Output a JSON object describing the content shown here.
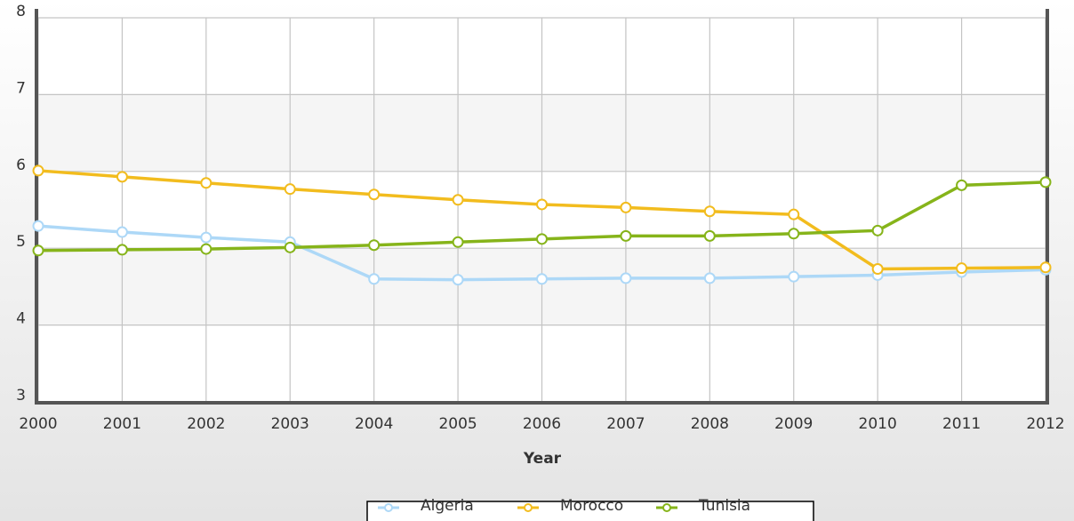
{
  "chart_data": {
    "type": "line",
    "x_label": "Year",
    "x": [
      2000,
      2001,
      2002,
      2003,
      2004,
      2005,
      2006,
      2007,
      2008,
      2009,
      2010,
      2011,
      2012
    ],
    "xlim": [
      2000,
      2012
    ],
    "xticks": [
      2000,
      2001,
      2002,
      2003,
      2004,
      2005,
      2006,
      2007,
      2008,
      2009,
      2010,
      2011,
      2012
    ],
    "ylim": [
      3,
      8
    ],
    "yticks": [
      3,
      4,
      5,
      6,
      7,
      8
    ],
    "grid": true,
    "legend": "bottom",
    "series": [
      {
        "name": "Algeria",
        "color": "#add8f7",
        "values": [
          5.29,
          5.21,
          5.14,
          5.08,
          4.6,
          4.59,
          4.6,
          4.61,
          4.61,
          4.63,
          4.65,
          4.69,
          4.72
        ]
      },
      {
        "name": "Morocco",
        "color": "#f2bc1e",
        "values": [
          6.01,
          5.93,
          5.85,
          5.77,
          5.7,
          5.63,
          5.57,
          5.53,
          5.48,
          5.44,
          4.73,
          4.74,
          4.75
        ]
      },
      {
        "name": "Tunisia",
        "color": "#86b41a",
        "values": [
          4.97,
          4.98,
          4.99,
          5.01,
          5.04,
          5.08,
          5.12,
          5.16,
          5.16,
          5.19,
          5.23,
          5.82,
          5.86
        ]
      }
    ]
  }
}
